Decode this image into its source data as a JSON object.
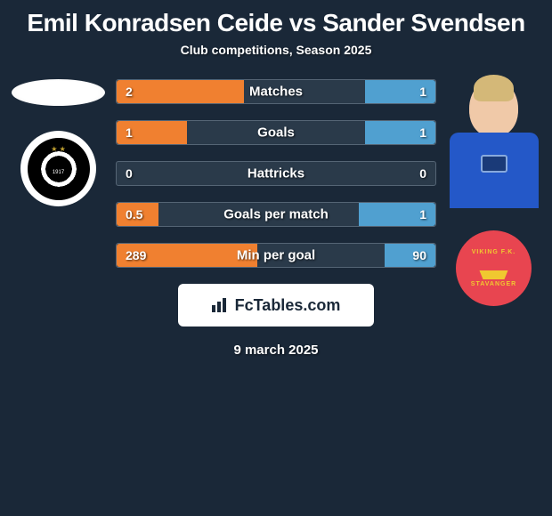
{
  "title": "Emil Konradsen Ceide vs Sander Svendsen",
  "subtitle": "Club competitions, Season 2025",
  "footer_brand": "FcTables.com",
  "footer_date": "9 march 2025",
  "colors": {
    "background": "#1a2838",
    "bar_left": "#f08030",
    "bar_right": "#50a0d0",
    "bar_track": "#2a3a4a",
    "bar_border": "#556575",
    "badge_bg": "#ffffff",
    "badge_text": "#1a2838",
    "text": "#ffffff"
  },
  "stats": [
    {
      "label": "Matches",
      "left_text": "2",
      "right_text": "1",
      "left_pct": 40,
      "right_pct": 22
    },
    {
      "label": "Goals",
      "left_text": "1",
      "right_text": "1",
      "left_pct": 22,
      "right_pct": 22
    },
    {
      "label": "Hattricks",
      "left_text": "0",
      "right_text": "0",
      "left_pct": 0,
      "right_pct": 0
    },
    {
      "label": "Goals per match",
      "left_text": "0.5",
      "right_text": "1",
      "left_pct": 13,
      "right_pct": 24
    },
    {
      "label": "Min per goal",
      "left_text": "289",
      "right_text": "90",
      "left_pct": 44,
      "right_pct": 16
    }
  ],
  "left": {
    "player_name": "Emil Konradsen Ceide",
    "club_name": "Rosenborg"
  },
  "right": {
    "player_name": "Sander Svendsen",
    "club_name": "Viking FK Stavanger"
  }
}
